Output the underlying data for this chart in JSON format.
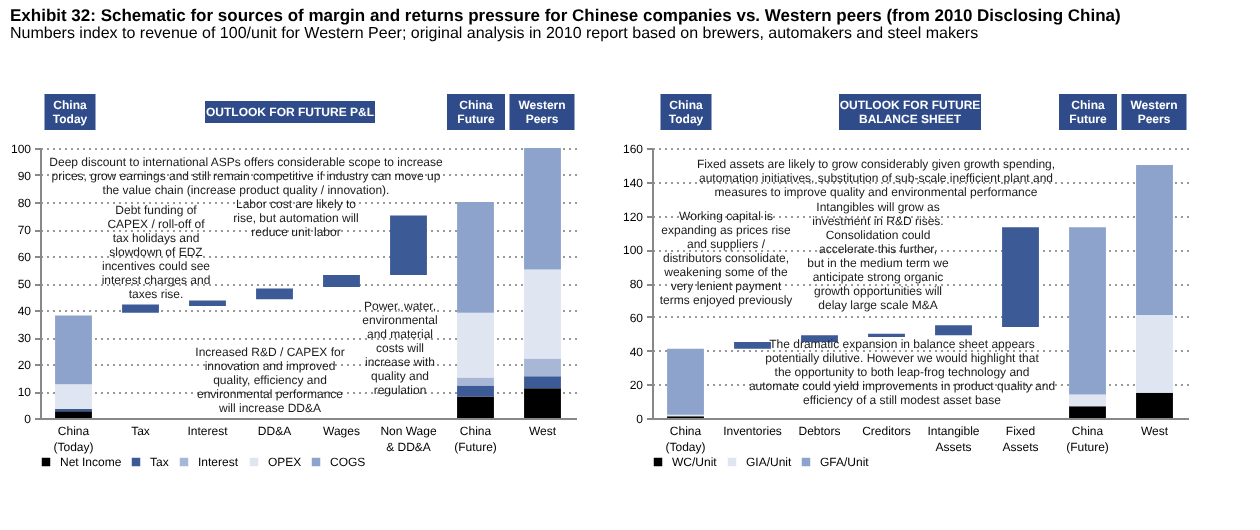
{
  "chart_data": [
    {
      "type": "bar",
      "stacked": true,
      "title": "Exhibit 32: Schematic for sources of margin and returns pressure for Chinese companies vs. Western peers (from 2010 Disclosing China)",
      "subtitle": "Numbers index to revenue of 100/unit for Western Peer; original analysis in 2010 report based on brewers, automakers and steel makers",
      "categories": [
        "China (Today)",
        "Tax",
        "Interest",
        "DD&A",
        "Wages",
        "Non Wage & DD&A",
        "China (Future)",
        "West"
      ],
      "series": [
        {
          "name": "Net Income",
          "color": "#000000",
          "values": [
            2.5,
            null,
            null,
            null,
            null,
            null,
            8,
            11
          ]
        },
        {
          "name": "Tax",
          "color": "#3c5a96",
          "values": [
            0.8,
            null,
            null,
            null,
            null,
            null,
            4,
            4.5
          ]
        },
        {
          "name": "Interest",
          "color": "#a9b7d6",
          "values": [
            null,
            null,
            null,
            null,
            null,
            null,
            3,
            6.5
          ]
        },
        {
          "name": "OPEX",
          "color": "#dfe5f1",
          "values": [
            9.2,
            null,
            null,
            null,
            null,
            null,
            24,
            33
          ]
        },
        {
          "name": "COGS",
          "color": "#8ea3cc",
          "values": [
            25.5,
            null,
            null,
            null,
            null,
            null,
            41,
            45
          ]
        },
        {
          "color": "#3c5a96",
          "values": [
            null,
            3,
            2,
            4,
            4.5,
            22,
            null,
            null
          ],
          "base": [
            null,
            39,
            41.5,
            44,
            48.5,
            53,
            null,
            null
          ]
        }
      ],
      "ylim": [
        0,
        100
      ],
      "yticks": [
        0,
        10,
        20,
        30,
        40,
        50,
        60,
        70,
        80,
        90,
        100
      ],
      "grid": "y",
      "legend": "bottom",
      "annotations": [
        "China Today",
        "OUTLOOK FOR FUTURE P&L",
        "China Future",
        "Western Peers",
        "Deep discount to international ASPs offers considerable scope to increase prices, grow earnings and still remain competitive if industry can move up the value chain (increase product quality / innovation).",
        "Debt funding of CAPEX / roll-off of tax holidays and slowdown of EDZ incentives could see interest charges and taxes rise.",
        "Labor cost are likely to rise, but automation will reduce unit labor",
        "Increased R&D / CAPEX for innovation and improved quality, efficiency and environmental performance will increase DD&A",
        "Power, water, environmental and material costs will increase with quality and regulation"
      ]
    },
    {
      "type": "bar",
      "stacked": true,
      "categories": [
        "China (Today)",
        "Inventories",
        "Debtors",
        "Creditors",
        "Intangible Assets",
        "Fixed Assets",
        "China (Future)",
        "West"
      ],
      "series": [
        {
          "name": "WC/Unit",
          "color": "#000000",
          "values": [
            1,
            null,
            null,
            null,
            null,
            null,
            7,
            15
          ]
        },
        {
          "name": "GIA/Unit",
          "color": "#dfe5f1",
          "values": [
            1,
            null,
            null,
            null,
            null,
            null,
            7,
            46
          ]
        },
        {
          "name": "GFA/Unit",
          "color": "#8ea3cc",
          "values": [
            39,
            null,
            null,
            null,
            null,
            null,
            99,
            89
          ]
        },
        {
          "color": "#3c5a96",
          "values": [
            null,
            4,
            4,
            -2,
            6,
            59,
            null,
            null
          ],
          "base": [
            null,
            41,
            45,
            50,
            49,
            54,
            null,
            null
          ]
        }
      ],
      "ylim": [
        0,
        160
      ],
      "yticks": [
        0,
        20,
        40,
        60,
        80,
        100,
        120,
        140,
        160
      ],
      "grid": "y",
      "legend": "bottom",
      "annotations": [
        "China Today",
        "OUTLOOK FOR FUTURE BALANCE SHEET",
        "China Future",
        "Western Peers",
        "Fixed assets are likely to grow considerably given growth spending, automation initiatives, substitution of sub-scale inefficient plant and measures to improve quality and environmental performance",
        "Working capital is expanding as prices rise and suppliers / distributors consolidate, weakening some of the very lenient payment terms enjoyed previously",
        "Intangibles will grow as investment in R&D rises. Consolidation could accelerate this further, but in the medium term we anticipate strong organic growth opportunities will delay large scale M&A",
        "The dramatic expansion in balance sheet appears potentially dilutive. However we would highlight that the opportunity to both leap-frog technology and automate could yield improvements in product quality and efficiency of a still modest asset base"
      ]
    }
  ]
}
